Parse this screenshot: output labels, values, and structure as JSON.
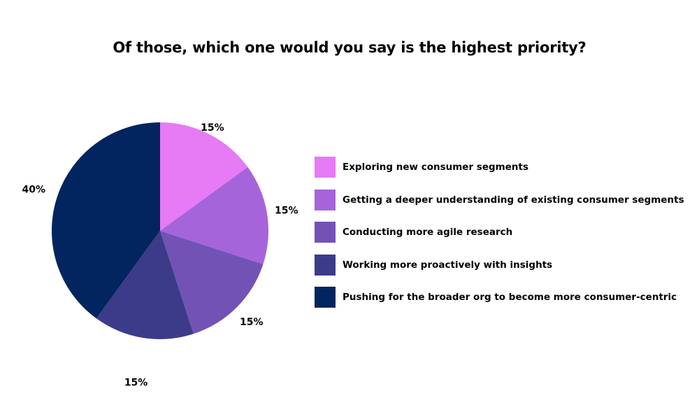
{
  "chart_data": {
    "type": "pie",
    "title": "Of those, which one would you say is the highest priority?",
    "categories": [
      "Exploring new consumer segments",
      "Getting a deeper understanding of existing consumer segments",
      "Conducting more agile research",
      "Working more proactively with insights",
      "Pushing for the broader org to become more consumer-centric"
    ],
    "values": [
      15,
      15,
      15,
      15,
      40
    ],
    "labels": [
      "15%",
      "15%",
      "15%",
      "15%",
      "40%"
    ],
    "colors": [
      "#e67bf5",
      "#a664db",
      "#7352b6",
      "#3b3b8a",
      "#02255f"
    ],
    "legend_position": "right"
  }
}
